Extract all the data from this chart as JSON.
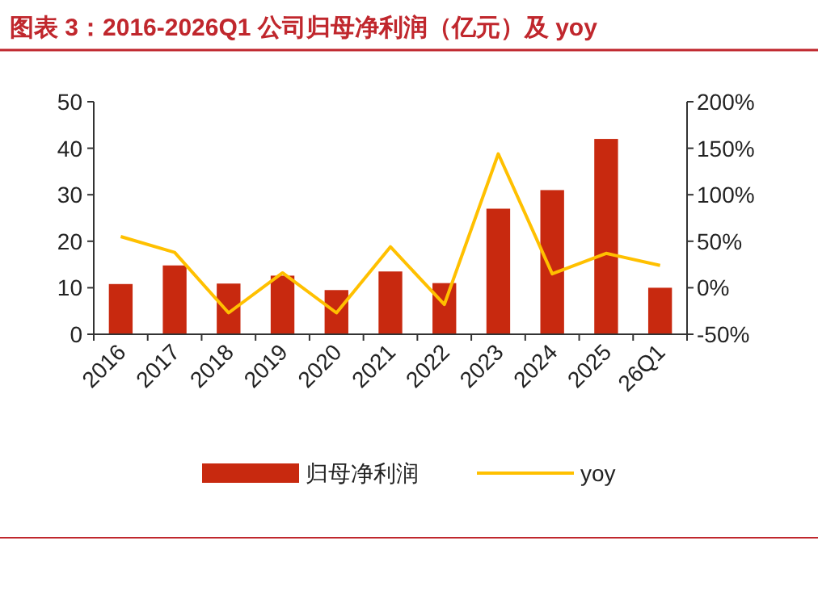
{
  "chart_data": {
    "type": "bar",
    "title": "图表 3：2016-2026Q1 公司归母净利润（亿元）及 yoy",
    "categories": [
      "2016",
      "2017",
      "2018",
      "2019",
      "2020",
      "2021",
      "2022",
      "2023",
      "2024",
      "2025",
      "26Q1"
    ],
    "series": [
      {
        "name": "归母净利润",
        "color": "#c8290f",
        "values": [
          10.8,
          14.8,
          10.9,
          12.6,
          9.5,
          13.5,
          11.0,
          27.0,
          31.0,
          42.0,
          10.0
        ]
      },
      {
        "name": "yoy",
        "type": "line",
        "axis": "y2",
        "color": "#ffc000",
        "values": [
          55,
          38,
          -27,
          16,
          -27,
          44,
          -18,
          144,
          15,
          37,
          24
        ]
      }
    ],
    "ylim": [
      0,
      50
    ],
    "yticks": [
      0,
      10,
      20,
      30,
      40,
      50
    ],
    "y2lim": [
      -50,
      200
    ],
    "y2ticks": [
      {
        "value": -50,
        "label": "-50%"
      },
      {
        "value": 0,
        "label": "0%"
      },
      {
        "value": 50,
        "label": "50%"
      },
      {
        "value": 100,
        "label": "100%"
      },
      {
        "value": 150,
        "label": "150%"
      },
      {
        "value": 200,
        "label": "200%"
      }
    ],
    "grid": false,
    "legend": "bottom"
  }
}
